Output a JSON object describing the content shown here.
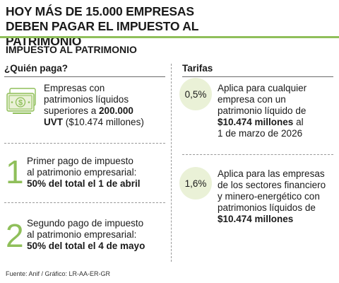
{
  "header": {
    "title": "Hoy más de 15.000 empresas deben pagar el impuesto al patrimonio",
    "subtitle": "IMPUESTO AL PATRIMONIO"
  },
  "left_column": {
    "heading": "¿Quién paga?",
    "who": {
      "icon": "money-bill-icon",
      "line1": "Empresas con",
      "line2": "patrimonios líquidos",
      "line3_pre": "superiores a ",
      "line3_bold": "200.000",
      "line4_bold": "UVT",
      "line4_post": " ($10.474 millones)"
    },
    "payment1": {
      "number": "1",
      "line1": "Primer pago de impuesto",
      "line2": "al patrimonio empresarial:",
      "line3_bold": "50% del total el 1 de abril"
    },
    "payment2": {
      "number": "2",
      "line1": "Segundo pago de impuesto",
      "line2": "al patrimonio empresarial:",
      "line3_bold": "50% del total el 4 de mayo"
    }
  },
  "right_column": {
    "heading": "Tarifas",
    "rate1": {
      "rate": "0,5%",
      "line1": "Aplica para cualquier",
      "line2": "empresa con un",
      "line3": "patrimonio líquido de",
      "line4_bold": "$10.474 millones",
      "line4_post": " al",
      "line5": "1 de marzo de 2026"
    },
    "rate2": {
      "rate": "1,6%",
      "line1": "Aplica para las empresas",
      "line2": "de los sectores financiero",
      "line3": "y minero-energético con",
      "line4": "patrimonios líquidos de",
      "line5_bold": "$10.474 millones"
    }
  },
  "footer": {
    "source": "Fuente: Anif / Gráfico: LR-AA-ER-GR"
  },
  "colors": {
    "accent_green": "#8fbf5a",
    "circle_fill": "#eaf1d7"
  }
}
